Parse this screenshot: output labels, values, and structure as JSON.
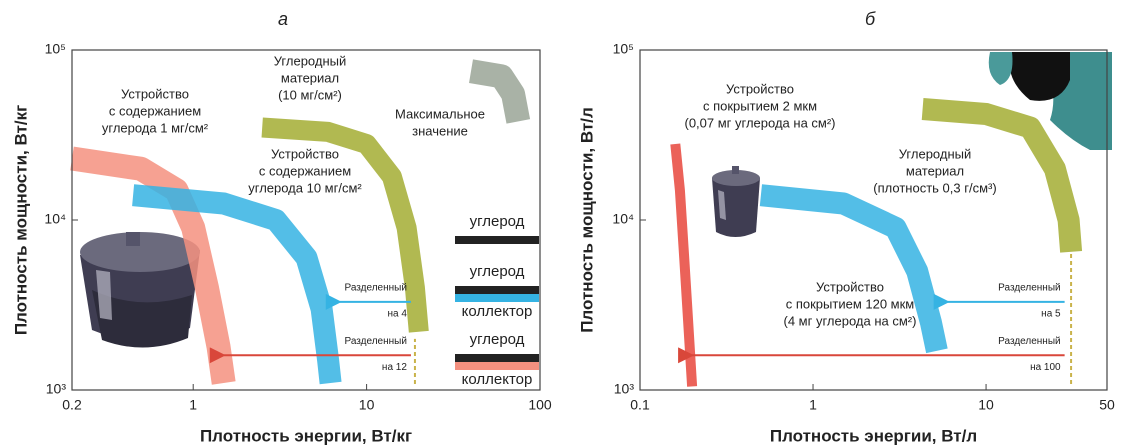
{
  "chart_data": [
    {
      "type": "band",
      "title": "а",
      "xlabel": "Плотность энергии, Вт/кг",
      "ylabel": "Плотность мощности, Вт/кг",
      "log_x": true,
      "log_y": true,
      "xlim": [
        0.2,
        100
      ],
      "xticks": [
        0.2,
        1,
        10,
        100
      ],
      "ylim": [
        1000,
        100000
      ],
      "yticks": [
        {
          "value": 1000,
          "label": "10³"
        },
        {
          "value": 10000,
          "label": "10⁴"
        },
        {
          "value": 100000,
          "label": "10⁵"
        }
      ],
      "series": [
        {
          "color": "#f4907f",
          "x": [
            0.2,
            0.5,
            0.8,
            1.0,
            1.2,
            1.4,
            1.5
          ],
          "values": [
            23000,
            20000,
            15000,
            9000,
            4000,
            1800,
            1100
          ]
        },
        {
          "color": "#35b3e3",
          "x": [
            0.45,
            1.5,
            3,
            4.5,
            5.5,
            6,
            6.2
          ],
          "values": [
            14000,
            12500,
            10000,
            6000,
            3000,
            1500,
            1100
          ]
        },
        {
          "color": "#a3ad33",
          "x": [
            2.5,
            6,
            10,
            14,
            17,
            19,
            20
          ],
          "values": [
            35000,
            33000,
            28000,
            18000,
            9000,
            4000,
            2200
          ]
        },
        {
          "color": "#9aa596",
          "x": [
            40,
            60,
            70,
            75
          ],
          "values": [
            75000,
            70000,
            55000,
            38000
          ]
        }
      ],
      "annotations": [
        [
          "Устройство",
          "с содержанием",
          "углерода 1 мг/см²"
        ],
        [
          "Углеродный",
          "материал",
          "(10 мг/см²)"
        ],
        [
          "Максимальное",
          "значение"
        ],
        [
          "Устройство",
          "с содержанием",
          "углерода 10 мг/см²"
        ]
      ],
      "arrows": [
        {
          "label": [
            "Разделенный",
            "на 4"
          ],
          "color": "#35b3e3",
          "y": 3300,
          "from": 19,
          "to": 7
        },
        {
          "label": [
            "Разделенный",
            "на 12"
          ],
          "color": "#d9473a",
          "y": 1600,
          "from": 19,
          "to": 1.5
        }
      ],
      "dashed_x": 19,
      "dashed_top": 2000,
      "legend": [
        {
          "top": "углерод",
          "bars": [
            "#222222"
          ]
        },
        {
          "top": "углерод",
          "bars": [
            "#222222",
            "#35b3e3"
          ],
          "bottom": "коллектор"
        },
        {
          "top": "углерод",
          "bars": [
            "#222222",
            "#f4907f"
          ],
          "bottom": "коллектор"
        }
      ]
    },
    {
      "type": "band",
      "title": "б",
      "xlabel": "Плотность энергии, Вт/л",
      "ylabel": "Плотность мощности, Вт/л",
      "log_x": true,
      "log_y": true,
      "xlim": [
        0.1,
        50
      ],
      "xticks": [
        0.1,
        1,
        10,
        50
      ],
      "ylim": [
        1000,
        100000
      ],
      "yticks": [
        {
          "value": 1000,
          "label": "10³"
        },
        {
          "value": 10000,
          "label": "10⁴"
        },
        {
          "value": 100000,
          "label": "10⁵"
        }
      ],
      "series": [
        {
          "color": "#e8473c",
          "x": [
            0.16,
            0.17,
            0.18,
            0.19,
            0.2
          ],
          "values": [
            28000,
            15000,
            6000,
            2500,
            1050
          ]
        },
        {
          "color": "#35b3e3",
          "x": [
            0.5,
            1.5,
            3,
            4,
            4.8,
            5.2
          ],
          "values": [
            14000,
            12500,
            9000,
            5000,
            2500,
            1700
          ]
        },
        {
          "color": "#a3ad33",
          "x": [
            4.3,
            10,
            18,
            25,
            30,
            31
          ],
          "values": [
            45000,
            42000,
            35000,
            20000,
            10000,
            6500
          ]
        }
      ],
      "annotations": [
        [
          "Устройство",
          "с покрытием 2 мкм",
          "(0,07 мг углерода на см²)"
        ],
        [
          "Углеродный",
          "материал",
          "(плотность 0,3 г/см³)"
        ],
        [
          "Устройство",
          "с покрытием 120 мкм",
          "(4 мг углерода на см²)"
        ]
      ],
      "arrows": [
        {
          "label": [
            "Разделенный",
            "на 5"
          ],
          "color": "#35b3e3",
          "y": 3300,
          "from": 30,
          "to": 6
        },
        {
          "label": [
            "Разделенный",
            "на 100"
          ],
          "color": "#d9473a",
          "y": 1600,
          "from": 30,
          "to": 0.2
        }
      ],
      "dashed_x": 31,
      "dashed_top": 6500
    }
  ]
}
